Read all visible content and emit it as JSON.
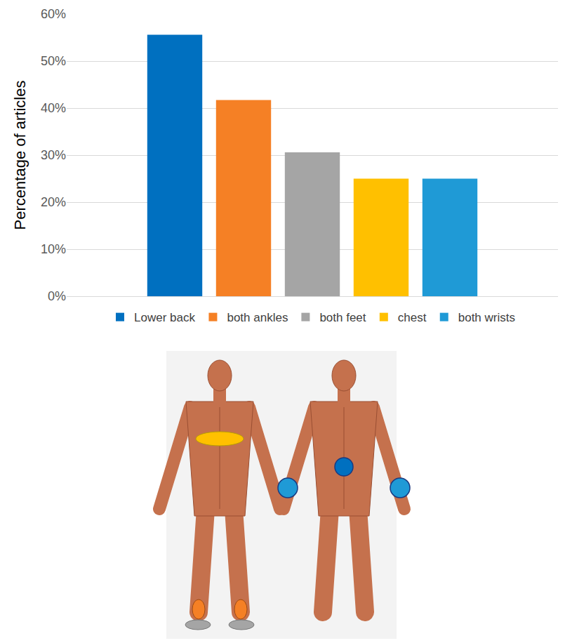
{
  "chart_data": {
    "type": "bar",
    "y_label": "Percentage of articles",
    "categories": [
      null
    ],
    "series": [
      {
        "name": "Lower back",
        "color": "#0070c0",
        "values": [
          55.6
        ]
      },
      {
        "name": "both ankles",
        "color": "#f58025",
        "values": [
          41.7
        ]
      },
      {
        "name": "both feet",
        "color": "#a5a5a5",
        "values": [
          30.6
        ]
      },
      {
        "name": "chest",
        "color": "#ffc000",
        "values": [
          25
        ]
      },
      {
        "name": "both wrists",
        "color": "#1f9ad6",
        "values": [
          25
        ]
      }
    ],
    "ylim": [
      0,
      60
    ],
    "yticks": [
      {
        "value": 0,
        "label": "0%"
      },
      {
        "value": 10,
        "label": "10%"
      },
      {
        "value": 20,
        "label": "20%"
      },
      {
        "value": 30,
        "label": "30%"
      },
      {
        "value": 40,
        "label": "40%"
      },
      {
        "value": 50,
        "label": "50%"
      },
      {
        "value": 60,
        "label": "60%"
      }
    ],
    "grid": true,
    "legend": "bottom",
    "tick_labels": "y"
  }
}
